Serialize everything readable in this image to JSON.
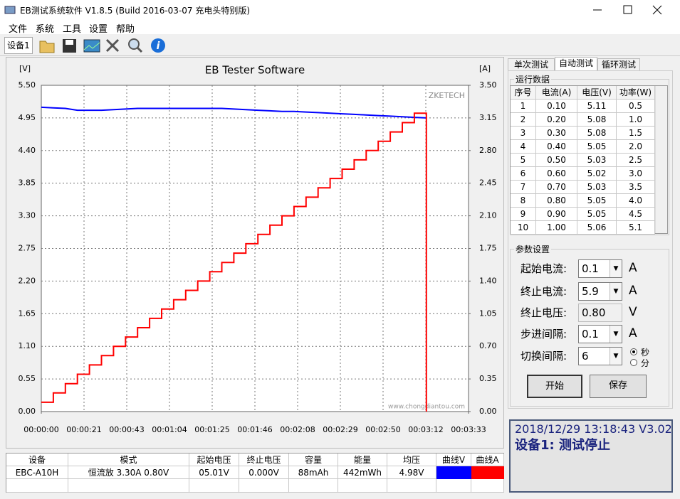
{
  "window": {
    "title": "EB测试系统软件 V1.8.5 (Build 2016-03-07 充电头特别版)"
  },
  "menu": [
    "文件",
    "系统",
    "工具",
    "设置",
    "帮助"
  ],
  "device_tab": "设备1",
  "chart_data": {
    "type": "line",
    "title": "EB Tester Software",
    "y_label": "[V]",
    "y2_label": "[A]",
    "brand": "ZKETECH",
    "watermark": "www.chongdiantou.com",
    "grid": true,
    "x": [
      0,
      6,
      12,
      18,
      24,
      30,
      36,
      42,
      48,
      54,
      60,
      66,
      72,
      78,
      84,
      90,
      96,
      102,
      108,
      114,
      120,
      126,
      132,
      138,
      144,
      150,
      156,
      162,
      168,
      174,
      180,
      186,
      192
    ],
    "xlim": [
      0,
      213
    ],
    "xticks": [
      {
        "value": 0,
        "label": "00:00:00"
      },
      {
        "value": 21.3,
        "label": "00:00:21"
      },
      {
        "value": 42.6,
        "label": "00:00:43"
      },
      {
        "value": 63.9,
        "label": "00:01:04"
      },
      {
        "value": 85.2,
        "label": "00:01:25"
      },
      {
        "value": 106.5,
        "label": "00:01:46"
      },
      {
        "value": 127.8,
        "label": "00:02:08"
      },
      {
        "value": 149.1,
        "label": "00:02:29"
      },
      {
        "value": 170.4,
        "label": "00:02:50"
      },
      {
        "value": 191.7,
        "label": "00:03:12"
      },
      {
        "value": 213,
        "label": "00:03:33"
      }
    ],
    "ylim": [
      0,
      5.5
    ],
    "yticks": [
      {
        "value": 0,
        "label": "0.00"
      },
      {
        "value": 0.55,
        "label": "0.55"
      },
      {
        "value": 1.1,
        "label": "1.10"
      },
      {
        "value": 1.65,
        "label": "1.65"
      },
      {
        "value": 2.2,
        "label": "2.20"
      },
      {
        "value": 2.75,
        "label": "2.75"
      },
      {
        "value": 3.3,
        "label": "3.30"
      },
      {
        "value": 3.85,
        "label": "3.85"
      },
      {
        "value": 4.4,
        "label": "4.40"
      },
      {
        "value": 4.95,
        "label": "4.95"
      },
      {
        "value": 5.5,
        "label": "5.50"
      }
    ],
    "y2lim": [
      0,
      3.5
    ],
    "y2ticks": [
      {
        "value": 0,
        "label": "0.00"
      },
      {
        "value": 0.35,
        "label": "0.35"
      },
      {
        "value": 0.7,
        "label": "0.70"
      },
      {
        "value": 1.05,
        "label": "1.05"
      },
      {
        "value": 1.4,
        "label": "1.40"
      },
      {
        "value": 1.75,
        "label": "1.75"
      },
      {
        "value": 2.1,
        "label": "2.10"
      },
      {
        "value": 2.45,
        "label": "2.45"
      },
      {
        "value": 2.8,
        "label": "2.80"
      },
      {
        "value": 3.15,
        "label": "3.15"
      },
      {
        "value": 3.5,
        "label": "3.50"
      }
    ],
    "series": [
      {
        "name": "曲线V",
        "color": "#0000ff",
        "values": [
          5.13,
          5.12,
          5.11,
          5.08,
          5.08,
          5.08,
          5.09,
          5.1,
          5.11,
          5.11,
          5.11,
          5.11,
          5.11,
          5.11,
          5.11,
          5.11,
          5.1,
          5.09,
          5.08,
          5.07,
          5.06,
          5.06,
          5.05,
          5.04,
          5.03,
          5.02,
          5.01,
          5.0,
          4.99,
          4.98,
          4.97,
          4.96,
          4.95
        ]
      },
      {
        "name": "曲线A",
        "color": "#ff0000",
        "axis": "y2",
        "step": true,
        "values": [
          0.1,
          0.2,
          0.3,
          0.4,
          0.5,
          0.6,
          0.7,
          0.8,
          0.9,
          1.0,
          1.1,
          1.2,
          1.3,
          1.4,
          1.5,
          1.6,
          1.7,
          1.8,
          1.9,
          2.0,
          2.1,
          2.2,
          2.3,
          2.4,
          2.5,
          2.6,
          2.7,
          2.8,
          2.9,
          3.0,
          3.1,
          3.2,
          0
        ]
      }
    ]
  },
  "tabs": [
    "单次测试",
    "自动测试",
    "循环测试"
  ],
  "run_data": {
    "title": "运行数据",
    "columns": [
      "序号",
      "电流(A)",
      "电压(V)",
      "功率(W)"
    ],
    "rows": [
      [
        "1",
        "0.10",
        "5.11",
        "0.5"
      ],
      [
        "2",
        "0.20",
        "5.08",
        "1.0"
      ],
      [
        "3",
        "0.30",
        "5.08",
        "1.5"
      ],
      [
        "4",
        "0.40",
        "5.05",
        "2.0"
      ],
      [
        "5",
        "0.50",
        "5.03",
        "2.5"
      ],
      [
        "6",
        "0.60",
        "5.02",
        "3.0"
      ],
      [
        "7",
        "0.70",
        "5.03",
        "3.5"
      ],
      [
        "8",
        "0.80",
        "5.05",
        "4.0"
      ],
      [
        "9",
        "0.90",
        "5.05",
        "4.5"
      ],
      [
        "10",
        "1.00",
        "5.06",
        "5.1"
      ]
    ]
  },
  "params": {
    "title": "参数设置",
    "rows": [
      {
        "label": "起始电流:",
        "value": "0.1",
        "unit": "A"
      },
      {
        "label": "终止电流:",
        "value": "5.9",
        "unit": "A"
      },
      {
        "label": "终止电压:",
        "value": "0.80",
        "unit": "V"
      },
      {
        "label": "步进间隔:",
        "value": "0.1",
        "unit": "A"
      },
      {
        "label": "切换间隔:",
        "value": "6"
      }
    ],
    "radio": [
      "秒",
      "分"
    ],
    "buttons": [
      "开始",
      "保存"
    ]
  },
  "status": {
    "time": "2018/12/29 13:18:43  V3.02",
    "message": "设备1: 测试停止"
  },
  "summary": {
    "columns": [
      "设备",
      "模式",
      "起始电压",
      "终止电压",
      "容量",
      "能量",
      "均压"
    ],
    "row": [
      "EBC-A10H",
      "恒流放  3.30A  0.80V",
      "05.01V",
      "0.000V",
      "88mAh",
      "442mWh",
      "4.98V"
    ]
  }
}
